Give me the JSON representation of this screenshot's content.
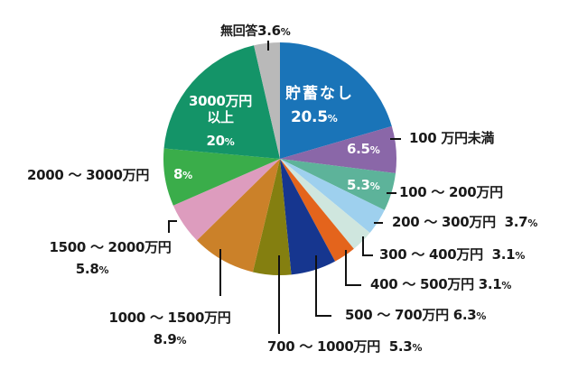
{
  "chart_data": {
    "type": "pie",
    "title": "",
    "start_angle_deg": 0,
    "direction": "clockwise",
    "unit": "%",
    "slices": [
      {
        "label": "貯蓄なし",
        "value": 20.5,
        "color": "#1a74b8"
      },
      {
        "label": "100万円未満",
        "value": 6.5,
        "color": "#8a67a8"
      },
      {
        "label": "100～200万円",
        "value": 5.3,
        "color": "#5db39a"
      },
      {
        "label": "200～300万円",
        "value": 3.7,
        "color": "#9ed0ee"
      },
      {
        "label": "300～400万円",
        "value": 3.1,
        "color": "#cfe6de"
      },
      {
        "label": "400～500万円",
        "value": 3.1,
        "color": "#e4641c"
      },
      {
        "label": "500～700万円",
        "value": 6.3,
        "color": "#16368f"
      },
      {
        "label": "700～1000万円",
        "value": 5.3,
        "color": "#847f10"
      },
      {
        "label": "1000～1500万円",
        "value": 8.9,
        "color": "#cb8129"
      },
      {
        "label": "1500～2000万円",
        "value": 5.8,
        "color": "#dd9cbe"
      },
      {
        "label": "2000～3000万円",
        "value": 8.0,
        "color": "#3aad4a"
      },
      {
        "label": "3000万円以上",
        "value": 20.0,
        "color": "#149468"
      },
      {
        "label": "無回答",
        "value": 3.6,
        "color": "#b9b9b9"
      }
    ]
  },
  "labels": {
    "none": {
      "name": "貯蓄なし",
      "pct": "20.5",
      "unit": "%"
    },
    "u100": {
      "name": "100 万円未満",
      "pct": "6.5",
      "unit": "%"
    },
    "r100_200": {
      "name": "100 ～ 200万円",
      "pct": "5.3",
      "unit": "%"
    },
    "r200_300": {
      "name": "200 ～ 300万円",
      "pct": "3.7",
      "unit": "%"
    },
    "r300_400": {
      "name": "300 ～ 400万円",
      "pct": "3.1",
      "unit": "%"
    },
    "r400_500": {
      "name": "400 ～ 500万円",
      "pct": "3.1",
      "unit": "%"
    },
    "r500_700": {
      "name": "500 ～ 700万円",
      "pct": "6.3",
      "unit": "%"
    },
    "r700_1000": {
      "name": "700 ～ 1000万円",
      "pct": "5.3",
      "unit": "%"
    },
    "r1000_1500": {
      "name": "1000 ～ 1500万円",
      "pct": "8.9",
      "unit": "%"
    },
    "r1500_2000": {
      "name": "1500 ～ 2000万円",
      "pct": "5.8",
      "unit": "%"
    },
    "r2000_3000": {
      "name": "2000 ～ 3000万円",
      "pct": "8",
      "unit": "%"
    },
    "over3000": {
      "name1": "3000万円",
      "name2": "以上",
      "pct": "20",
      "unit": "%"
    },
    "noanswer": {
      "name": "無回答",
      "pct": "3.6",
      "unit": "%"
    }
  }
}
